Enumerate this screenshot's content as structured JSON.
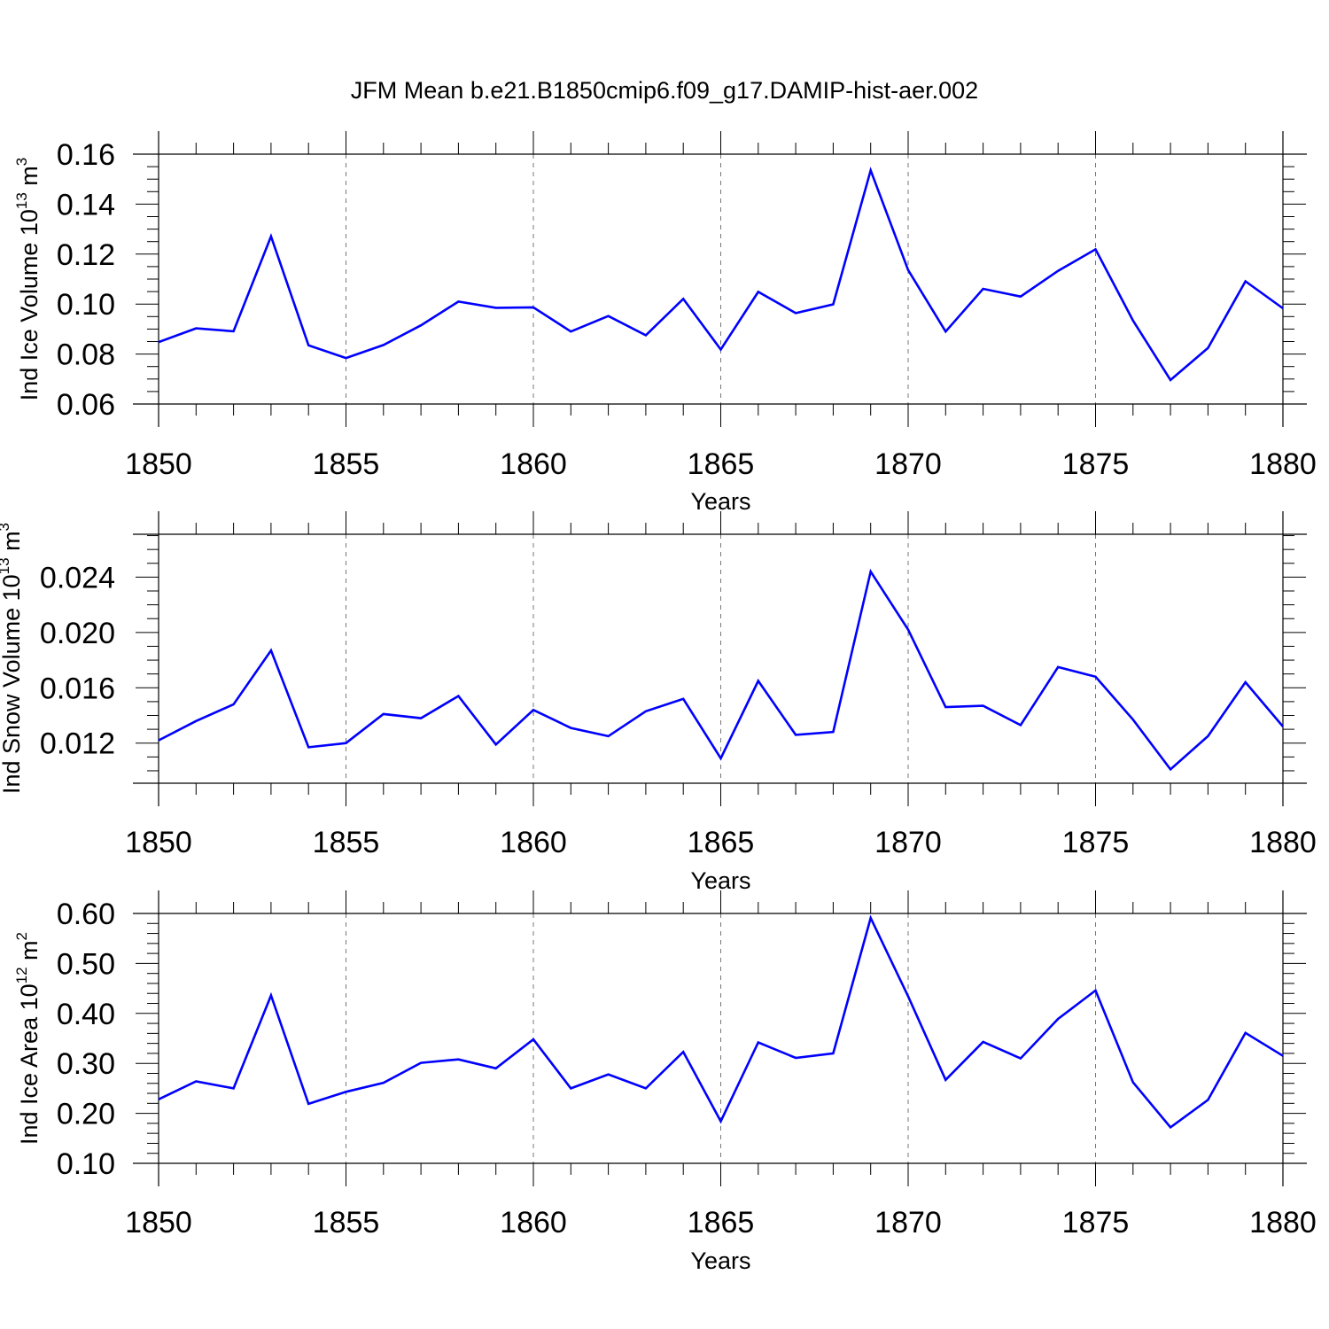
{
  "title": "JFM Mean b.e21.B1850cmip6.f09_g17.DAMIP-hist-aer.002",
  "line_color": "#0000ff",
  "grid_color": "#777777",
  "chart_data": [
    {
      "type": "line",
      "xlabel": "Years",
      "ylabel": "Ind Ice Volume 10",
      "ylabel_exp": "13",
      "ylabel_unit": " m",
      "ylabel_unit_exp": "3",
      "xlim": [
        1850,
        1880
      ],
      "ylim": [
        0.06,
        0.16
      ],
      "x_ticks": [
        1850,
        1855,
        1860,
        1865,
        1870,
        1875,
        1880
      ],
      "x_tick_labels": [
        "1850",
        "1855",
        "1860",
        "1865",
        "1870",
        "1875",
        "1880"
      ],
      "y_ticks": [
        0.06,
        0.08,
        0.1,
        0.12,
        0.14,
        0.16
      ],
      "y_tick_labels": [
        "0.06",
        "0.08",
        "0.10",
        "0.12",
        "0.14",
        "0.16"
      ],
      "y_minor_step": 0.005,
      "grid": "x-dashed",
      "x": [
        1850,
        1851,
        1852,
        1853,
        1854,
        1855,
        1856,
        1857,
        1858,
        1859,
        1860,
        1861,
        1862,
        1863,
        1864,
        1865,
        1866,
        1867,
        1868,
        1869,
        1870,
        1871,
        1872,
        1873,
        1874,
        1875,
        1876,
        1877,
        1878,
        1879,
        1880
      ],
      "y": [
        0.0848,
        0.0903,
        0.0891,
        0.1271,
        0.0835,
        0.0784,
        0.0836,
        0.0915,
        0.101,
        0.0985,
        0.0987,
        0.089,
        0.0952,
        0.0875,
        0.1021,
        0.0818,
        0.1049,
        0.0964,
        0.0999,
        0.1535,
        0.1136,
        0.089,
        0.1061,
        0.103,
        0.1133,
        0.1219,
        0.0934,
        0.0696,
        0.0824,
        0.1091,
        0.0983
      ]
    },
    {
      "type": "line",
      "xlabel": "Years",
      "ylabel": "Ind Snow Volume 10",
      "ylabel_exp": "13",
      "ylabel_unit": " m",
      "ylabel_unit_exp": "3",
      "xlim": [
        1850,
        1880
      ],
      "ylim": [
        0.0091,
        0.0271
      ],
      "x_ticks": [
        1850,
        1855,
        1860,
        1865,
        1870,
        1875,
        1880
      ],
      "x_tick_labels": [
        "1850",
        "1855",
        "1860",
        "1865",
        "1870",
        "1875",
        "1880"
      ],
      "y_ticks": [
        0.012,
        0.016,
        0.02,
        0.024
      ],
      "y_tick_labels": [
        "0.012",
        "0.016",
        "0.020",
        "0.024"
      ],
      "y_minor_step": 0.001,
      "grid": "x-dashed",
      "x": [
        1850,
        1851,
        1852,
        1853,
        1854,
        1855,
        1856,
        1857,
        1858,
        1859,
        1860,
        1861,
        1862,
        1863,
        1864,
        1865,
        1866,
        1867,
        1868,
        1869,
        1870,
        1871,
        1872,
        1873,
        1874,
        1875,
        1876,
        1877,
        1878,
        1879,
        1880
      ],
      "y": [
        0.0122,
        0.0136,
        0.0148,
        0.0187,
        0.0117,
        0.012,
        0.0141,
        0.0138,
        0.0154,
        0.0119,
        0.0144,
        0.0131,
        0.0125,
        0.0143,
        0.0152,
        0.0109,
        0.0165,
        0.0126,
        0.0128,
        0.0244,
        0.0202,
        0.0146,
        0.0147,
        0.0133,
        0.0175,
        0.0168,
        0.0137,
        0.0101,
        0.0125,
        0.0164,
        0.0132
      ]
    },
    {
      "type": "line",
      "xlabel": "Years",
      "ylabel": "Ind Ice Area 10",
      "ylabel_exp": "12",
      "ylabel_unit": " m",
      "ylabel_unit_exp": "2",
      "xlim": [
        1850,
        1880
      ],
      "ylim": [
        0.1,
        0.6
      ],
      "x_ticks": [
        1850,
        1855,
        1860,
        1865,
        1870,
        1875,
        1880
      ],
      "x_tick_labels": [
        "1850",
        "1855",
        "1860",
        "1865",
        "1870",
        "1875",
        "1880"
      ],
      "y_ticks": [
        0.1,
        0.2,
        0.3,
        0.4,
        0.5,
        0.6
      ],
      "y_tick_labels": [
        "0.10",
        "0.20",
        "0.30",
        "0.40",
        "0.50",
        "0.60"
      ],
      "y_minor_step": 0.02,
      "grid": "x-dashed",
      "x": [
        1850,
        1851,
        1852,
        1853,
        1854,
        1855,
        1856,
        1857,
        1858,
        1859,
        1860,
        1861,
        1862,
        1863,
        1864,
        1865,
        1866,
        1867,
        1868,
        1869,
        1870,
        1871,
        1872,
        1873,
        1874,
        1875,
        1876,
        1877,
        1878,
        1879,
        1880
      ],
      "y": [
        0.228,
        0.264,
        0.25,
        0.436,
        0.219,
        0.243,
        0.261,
        0.301,
        0.308,
        0.29,
        0.348,
        0.25,
        0.278,
        0.25,
        0.323,
        0.184,
        0.342,
        0.311,
        0.32,
        0.591,
        0.434,
        0.267,
        0.343,
        0.31,
        0.389,
        0.446,
        0.262,
        0.172,
        0.227,
        0.361,
        0.315
      ]
    }
  ]
}
